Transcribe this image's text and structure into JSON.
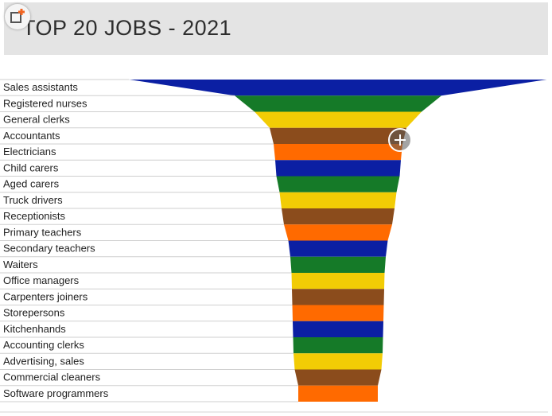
{
  "header": {
    "title": "TOP 20 JOBS - 2021"
  },
  "icons": {
    "badge": "share-icon",
    "zoom": "zoom-in-icon"
  },
  "colors": {
    "blue": "#0b1fa3",
    "green": "#157a28",
    "yellow": "#f2cc05",
    "brown": "#8b4c1c",
    "orange": "#ff6a00",
    "badge_accent": "#f26522"
  },
  "chart_data": {
    "type": "bar",
    "title": "TOP 20 JOBS - 2021",
    "categories": [
      "Sales assistants",
      "Registered nurses",
      "General clerks",
      "Accountants",
      "Electricians",
      "Child carers",
      "Aged carers",
      "Truck drivers",
      "Receptionists",
      "Primary teachers",
      "Secondary teachers",
      "Waiters",
      "Office managers",
      "Carpenters joiners",
      "Storepersons",
      "Kitchenhands",
      "Accounting clerks",
      "Advertising, sales",
      "Commercial cleaners",
      "Software programmers"
    ],
    "bar_colors": [
      "#0b1fa3",
      "#157a28",
      "#f2cc05",
      "#8b4c1c",
      "#ff6a00",
      "#0b1fa3",
      "#157a28",
      "#f2cc05",
      "#8b4c1c",
      "#ff6a00",
      "#0b1fa3",
      "#157a28",
      "#f2cc05",
      "#8b4c1c",
      "#ff6a00",
      "#0b1fa3",
      "#157a28",
      "#f2cc05",
      "#8b4c1c",
      "#ff6a00"
    ],
    "values": [
      525,
      260,
      210,
      172,
      162,
      158,
      155,
      147,
      142,
      136,
      125,
      120,
      117,
      116,
      115,
      114,
      113,
      112,
      109,
      100
    ],
    "xlabel": "",
    "ylabel": "",
    "grid": false,
    "legend": "none"
  }
}
